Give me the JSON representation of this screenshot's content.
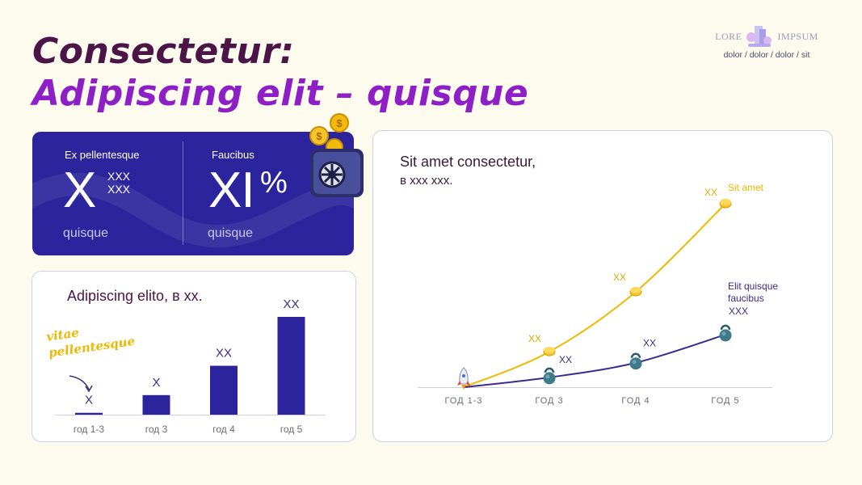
{
  "title": {
    "line1": "Consectetur:",
    "line2": "Adipiscing elit – quisque"
  },
  "logo": {
    "left": "LORE",
    "right": "IMPSUM",
    "sub": "dolor / dolor / dolor / sit",
    "icon": "building-icon"
  },
  "kpi": {
    "left": {
      "label": "Ex pellentesque",
      "value": "X",
      "sup1": "XXX",
      "sup2": "XXX",
      "foot": "quisque"
    },
    "right": {
      "label": "Faucibus",
      "value": "XI",
      "unit": "%",
      "foot": "quisque"
    },
    "decor_icon": "safe-with-coins-icon",
    "bg_color": "#2b249c"
  },
  "handnote": [
    "vitae",
    "pellentesque"
  ],
  "chart_data": [
    {
      "type": "bar",
      "title": "Adipiscing elito, в хх.",
      "categories": [
        "год 1-3",
        "год 3",
        "год 4",
        "год 5"
      ],
      "values": [
        0.3,
        3.2,
        8.0,
        16.0
      ],
      "data_labels": [
        "X",
        "X",
        "XX",
        "XX"
      ],
      "color": "#2b249c",
      "ylim": [
        0,
        16
      ]
    },
    {
      "type": "line",
      "title": "Sit amet consectetur,",
      "subtitle": "в ххх ххх.",
      "categories": [
        "ГОД 1-3",
        "ГОД 3",
        "ГОД 4",
        "ГОД 5"
      ],
      "ylim": [
        0,
        15
      ],
      "series": [
        {
          "name": "Sit amet",
          "color": "#f0b800",
          "values": [
            0,
            2.9,
            7.8,
            15.0
          ],
          "labels": [
            "",
            "XX",
            "XX",
            "XX"
          ],
          "marker": "coin-icon"
        },
        {
          "name": "Elit quisque faucibus",
          "color": "#3d2a8c",
          "values": [
            0,
            0.8,
            2.0,
            4.3
          ],
          "labels": [
            "",
            "XX",
            "XX",
            "XXX"
          ],
          "marker": "kettlebell-icon"
        }
      ],
      "start_marker": "rocket-icon"
    }
  ]
}
